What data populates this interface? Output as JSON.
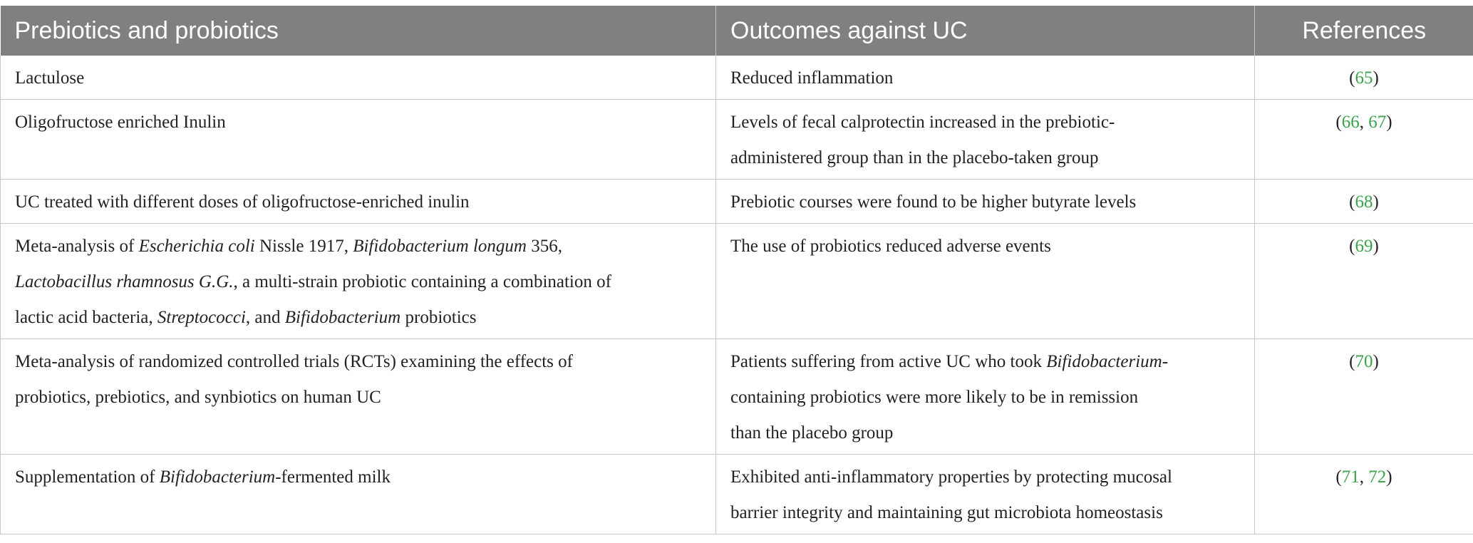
{
  "header": {
    "col1": "Prebiotics and probiotics",
    "col2": "Outcomes against UC",
    "col3": "References"
  },
  "rows": [
    {
      "c1": [
        "Lactulose"
      ],
      "c2": [
        "Reduced inflammation"
      ],
      "c3": {
        "open": "(",
        "refs": [
          "65"
        ],
        "close": ")"
      }
    },
    {
      "c1": [
        "Oligofructose enriched Inulin"
      ],
      "c2": [
        "Levels of fecal calprotectin increased in the prebiotic-",
        "administered group than in the placebo-taken group"
      ],
      "c3": {
        "open": "(",
        "refs": [
          "66",
          "67"
        ],
        "sep": ", ",
        "close": ")"
      }
    },
    {
      "c1": [
        "UC treated with different doses of oligofructose-enriched inulin"
      ],
      "c2": [
        "Prebiotic courses were found to be higher butyrate levels"
      ],
      "c3": {
        "open": "(",
        "refs": [
          "68"
        ],
        "close": ")"
      }
    },
    {
      "c1": {
        "l1a": "Meta-analysis of ",
        "l1b": "Escherichia coli",
        "l1c": " Nissle 1917, ",
        "l1d": "Bifidobacterium longum",
        "l1e": " 356,",
        "l2a": "Lactobacillus rhamnosus G.G.",
        "l2b": ", a multi-strain probiotic containing a combination of",
        "l3a": "lactic acid bacteria, ",
        "l3b": "Streptococci",
        "l3c": ", and ",
        "l3d": "Bifidobacterium",
        "l3e": " probiotics"
      },
      "c2": [
        "The use of probiotics reduced adverse events"
      ],
      "c3": {
        "open": "(",
        "refs": [
          "69"
        ],
        "close": ")"
      }
    },
    {
      "c1": [
        "Meta-analysis of randomized controlled trials (RCTs) examining the effects of",
        "probiotics, prebiotics, and synbiotics on human UC"
      ],
      "c2": {
        "l1a": "Patients suffering from active UC who took ",
        "l1b": "Bifidobacterium",
        "l1c": "-",
        "l2": "containing probiotics were more likely to be in remission",
        "l3": "than the placebo group"
      },
      "c3": {
        "open": "(",
        "refs": [
          "70"
        ],
        "close": ")"
      }
    },
    {
      "c1": {
        "a": "Supplementation of ",
        "b": "Bifidobacterium",
        "c": "-fermented milk"
      },
      "c2": [
        "Exhibited anti-inflammatory properties by protecting mucosal",
        "barrier integrity and maintaining gut microbiota homeostasis"
      ],
      "c3": {
        "open": "(",
        "refs": [
          "71",
          "72"
        ],
        "sep": ", ",
        "close": ")"
      }
    }
  ],
  "colors": {
    "header_bg": "#7f8180",
    "link_green": "#3aa34b",
    "rule": "#c8c8c8"
  }
}
